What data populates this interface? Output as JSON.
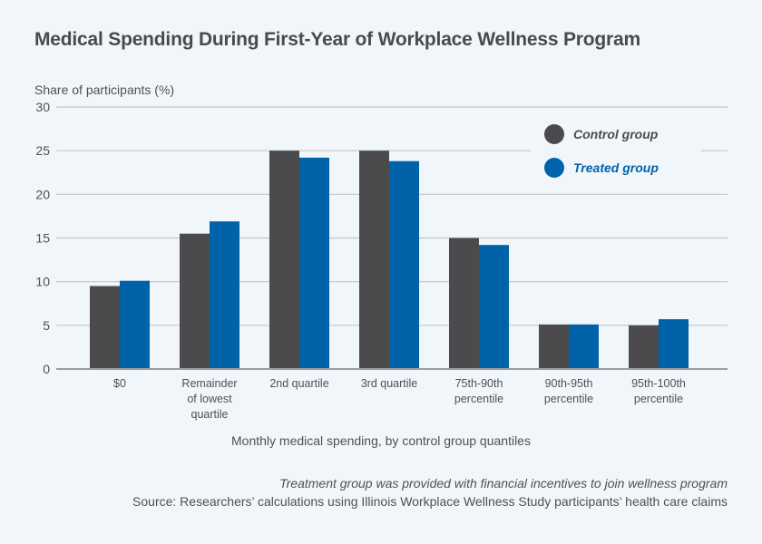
{
  "chart_data": {
    "type": "bar",
    "title": "Medical Spending During First-Year of Workplace Wellness Program",
    "ylabel": "Share of participants (%)",
    "xlabel": "Monthly medical spending, by control group quantiles",
    "ylim": [
      0,
      30
    ],
    "yticks": [
      0,
      5,
      10,
      15,
      20,
      25,
      30
    ],
    "grid": true,
    "legend_position": "top-right",
    "categories": [
      [
        "$0"
      ],
      [
        "Remainder",
        "of lowest",
        "quartile"
      ],
      [
        "2nd quartile"
      ],
      [
        "3rd quartile"
      ],
      [
        "75th-90th",
        "percentile"
      ],
      [
        "90th-95th",
        "percentile"
      ],
      [
        "95th-100th",
        "percentile"
      ]
    ],
    "series": [
      {
        "name": "Control group",
        "color": "#4b4b4d",
        "values": [
          9.5,
          15.5,
          25.0,
          25.0,
          15.0,
          5.1,
          5.0
        ]
      },
      {
        "name": "Treated group",
        "color": "#0062a8",
        "values": [
          10.1,
          16.9,
          24.2,
          23.8,
          14.2,
          5.1,
          5.7
        ]
      }
    ],
    "notes": [
      "Treatment group was provided with financial incentives to join wellness program",
      "Source: Researchers’ calculations using Illinois Workplace Wellness Study participants’ health care claims"
    ]
  }
}
